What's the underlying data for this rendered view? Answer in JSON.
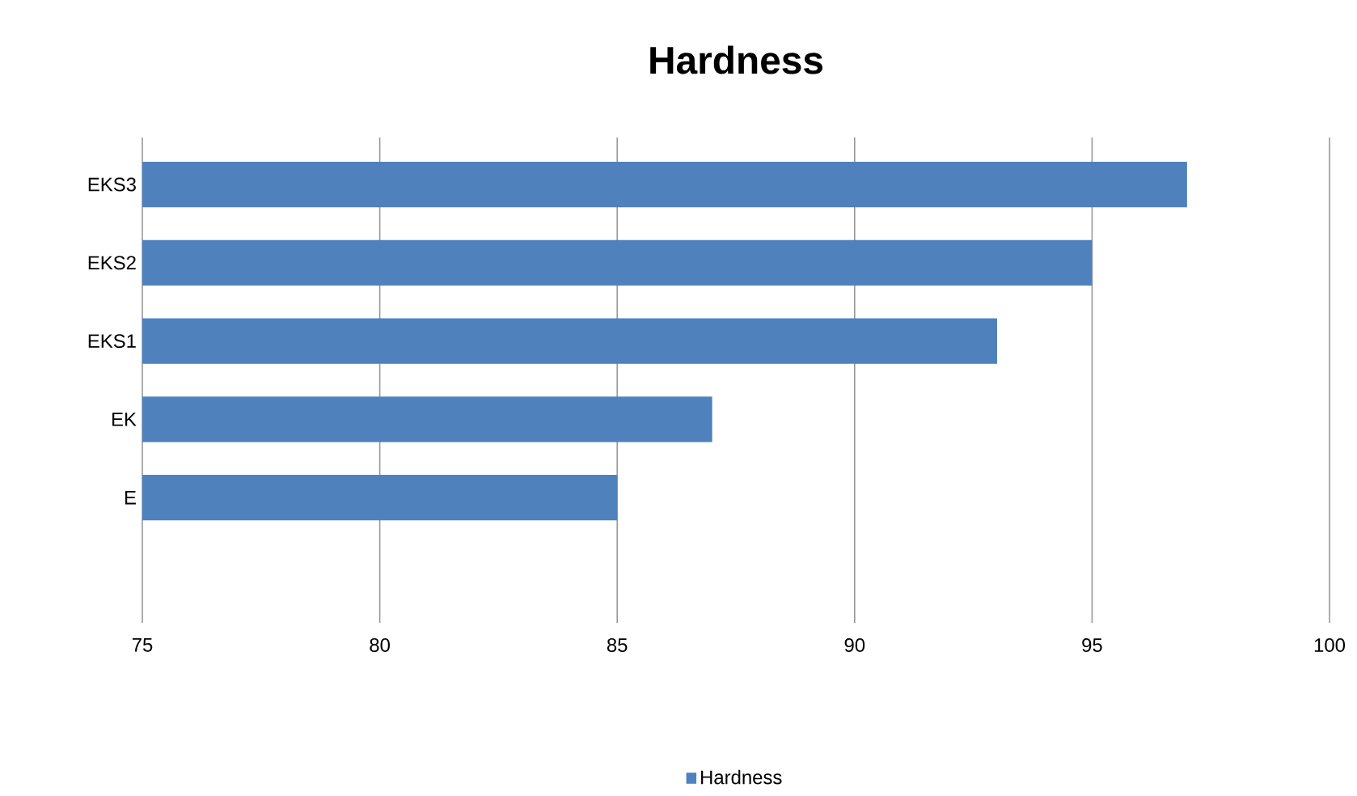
{
  "chart_data": {
    "type": "bar",
    "orientation": "horizontal",
    "title": "Hardness",
    "categories": [
      "EKS3",
      "EKS2",
      "EKS1",
      "EK",
      "E",
      null
    ],
    "series": [
      {
        "name": "Hardness",
        "color": "#4f81bd",
        "values": [
          97,
          95,
          93,
          87,
          85,
          null
        ]
      }
    ],
    "xlim": [
      75,
      100
    ],
    "xticks": [
      75,
      80,
      85,
      90,
      95,
      100
    ],
    "grid": "x",
    "legend": "bottom"
  }
}
